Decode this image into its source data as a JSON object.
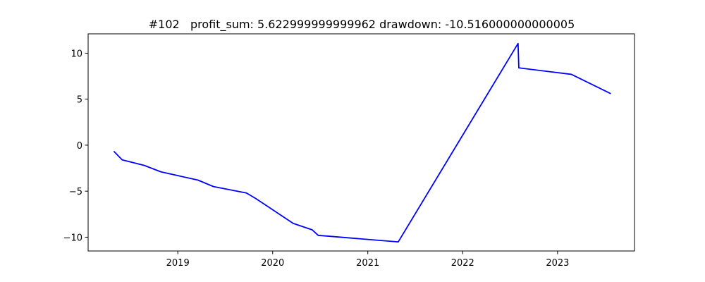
{
  "chart_data": {
    "type": "line",
    "title": "#102   profit_sum: 5.622999999999962 drawdown: -10.516000000000005",
    "xlabel": "",
    "ylabel": "",
    "x_axis": "date",
    "xlim": [
      "2018-01-21",
      "2023-10-24"
    ],
    "ylim": [
      -11.5,
      12.1
    ],
    "grid": false,
    "color": "#0000ff",
    "x_ticks": [
      {
        "value": "2019-01-01",
        "label": "2019"
      },
      {
        "value": "2020-01-01",
        "label": "2020"
      },
      {
        "value": "2021-01-01",
        "label": "2021"
      },
      {
        "value": "2022-01-01",
        "label": "2022"
      },
      {
        "value": "2023-01-01",
        "label": "2023"
      }
    ],
    "y_ticks": [
      {
        "value": 10,
        "label": "10"
      },
      {
        "value": 5,
        "label": "5"
      },
      {
        "value": 0,
        "label": "0"
      },
      {
        "value": -5,
        "label": "−5"
      },
      {
        "value": -10,
        "label": "−10"
      }
    ],
    "series": [
      {
        "points": [
          {
            "x": "2018-05-01",
            "y": -0.7
          },
          {
            "x": "2018-06-01",
            "y": -1.6
          },
          {
            "x": "2018-08-25",
            "y": -2.2
          },
          {
            "x": "2018-10-28",
            "y": -2.9
          },
          {
            "x": "2019-03-20",
            "y": -3.8
          },
          {
            "x": "2019-05-18",
            "y": -4.5
          },
          {
            "x": "2019-09-22",
            "y": -5.2
          },
          {
            "x": "2019-10-28",
            "y": -5.8
          },
          {
            "x": "2020-03-20",
            "y": -8.5
          },
          {
            "x": "2020-06-01",
            "y": -9.2
          },
          {
            "x": "2020-06-24",
            "y": -9.8
          },
          {
            "x": "2021-04-28",
            "y": -10.516
          },
          {
            "x": "2022-08-02",
            "y": 11.05
          },
          {
            "x": "2022-08-05",
            "y": 8.4
          },
          {
            "x": "2023-02-23",
            "y": 7.7
          },
          {
            "x": "2023-07-23",
            "y": 5.623
          }
        ]
      }
    ]
  }
}
